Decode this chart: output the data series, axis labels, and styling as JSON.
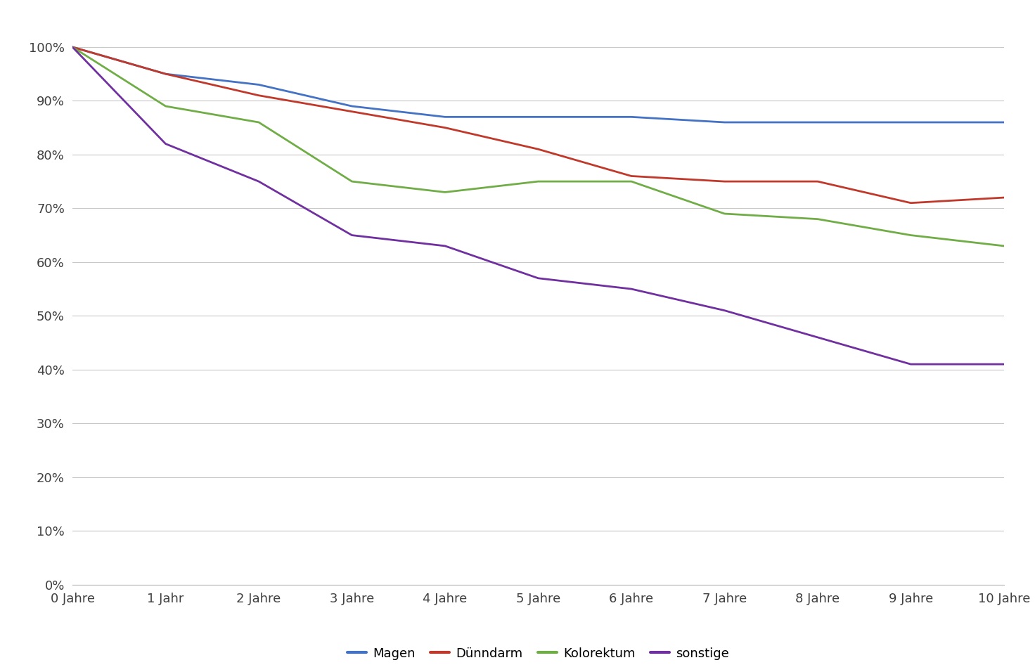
{
  "x_labels": [
    "0 Jahre",
    "1 Jahr",
    "2 Jahre",
    "3 Jahre",
    "4 Jahre",
    "5 Jahre",
    "6 Jahre",
    "7 Jahre",
    "8 Jahre",
    "9 Jahre",
    "10 Jahre"
  ],
  "x_values": [
    0,
    1,
    2,
    3,
    4,
    5,
    6,
    7,
    8,
    9,
    10
  ],
  "series": [
    {
      "name": "Magen",
      "color": "#4472C4",
      "values": [
        100,
        95,
        93,
        89,
        87,
        87,
        87,
        86,
        86,
        86,
        86
      ]
    },
    {
      "name": "Dünndarm",
      "color": "#C0392B",
      "values": [
        100,
        95,
        91,
        88,
        85,
        81,
        76,
        75,
        75,
        71,
        72
      ]
    },
    {
      "name": "Kolorektum",
      "color": "#70AD47",
      "values": [
        100,
        89,
        86,
        75,
        73,
        75,
        75,
        69,
        68,
        65,
        63
      ]
    },
    {
      "name": "sonstige",
      "color": "#7030A0",
      "values": [
        100,
        82,
        75,
        65,
        63,
        57,
        55,
        51,
        46,
        41,
        41
      ]
    }
  ],
  "yticks": [
    0,
    10,
    20,
    30,
    40,
    50,
    60,
    70,
    80,
    90,
    100
  ],
  "ytick_labels": [
    "0%",
    "10%",
    "20%",
    "30%",
    "40%",
    "50%",
    "60%",
    "70%",
    "80%",
    "90%",
    "100%"
  ],
  "background_color": "#ffffff",
  "grid_color": "#c8c8c8",
  "line_width": 2.0
}
